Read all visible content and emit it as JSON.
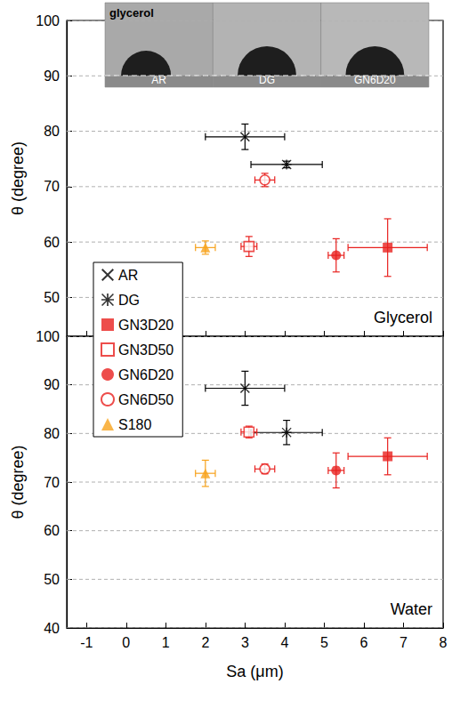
{
  "chart_data": [
    {
      "type": "scatter",
      "title": "Glycerol",
      "y_label": "θ (degree)",
      "xlim": [
        -1.5,
        8
      ],
      "xticks": [
        -1,
        0,
        1,
        2,
        3,
        4,
        5,
        6,
        7,
        8
      ],
      "ylim": [
        43,
        100
      ],
      "yticks": [
        50,
        60,
        70,
        80,
        90,
        100
      ],
      "grid": true,
      "legend": "left",
      "tick_labels": "y",
      "inset": {
        "title": "glycerol",
        "labels": [
          "AR",
          "DG",
          "GN6D20"
        ]
      },
      "series": [
        {
          "name": "AR",
          "color": "#000000",
          "marker": "x",
          "x": [
            3.0
          ],
          "values": [
            79.0
          ],
          "x_error": [
            1.0
          ],
          "y_error": [
            2.3
          ]
        },
        {
          "name": "DG",
          "color": "#000000",
          "marker": "asterisk",
          "x": [
            4.05
          ],
          "values": [
            74.0
          ],
          "x_error": [
            0.9
          ],
          "y_error": [
            0.6
          ]
        },
        {
          "name": "GN3D20",
          "color": "#e8201e",
          "marker": "square",
          "x": [
            6.6
          ],
          "values": [
            59.0
          ],
          "x_error": [
            1.0
          ],
          "y_error": [
            5.2
          ]
        },
        {
          "name": "GN3D50",
          "color": "#e8201e",
          "marker": "square-open",
          "x": [
            3.1
          ],
          "values": [
            59.2
          ],
          "x_error": [
            0.2
          ],
          "y_error": [
            1.8
          ]
        },
        {
          "name": "GN6D20",
          "color": "#e8201e",
          "marker": "circle",
          "x": [
            5.3
          ],
          "values": [
            57.6
          ],
          "x_error": [
            0.2
          ],
          "y_error": [
            3.0
          ]
        },
        {
          "name": "GN6D50",
          "color": "#e8201e",
          "marker": "circle-open",
          "x": [
            3.5
          ],
          "values": [
            71.2
          ],
          "x_error": [
            0.25
          ],
          "y_error": [
            1.2
          ]
        },
        {
          "name": "S180",
          "color": "#f7a21b",
          "marker": "triangle",
          "x": [
            2.0
          ],
          "values": [
            59.0
          ],
          "x_error": [
            0.25
          ],
          "y_error": [
            1.2
          ]
        }
      ]
    },
    {
      "type": "scatter",
      "title": "Water",
      "x_label": "Sa (μm)",
      "y_label": "θ (degree)",
      "xlim": [
        -1.5,
        8
      ],
      "xticks": [
        -1,
        0,
        1,
        2,
        3,
        4,
        5,
        6,
        7,
        8
      ],
      "ylim": [
        40,
        100
      ],
      "yticks": [
        40,
        50,
        60,
        70,
        80,
        90,
        100
      ],
      "grid": true,
      "series": [
        {
          "name": "AR",
          "color": "#000000",
          "marker": "x",
          "x": [
            3.0
          ],
          "values": [
            89.3
          ],
          "x_error": [
            1.0
          ],
          "y_error": [
            3.5
          ]
        },
        {
          "name": "DG",
          "color": "#000000",
          "marker": "asterisk",
          "x": [
            4.05
          ],
          "values": [
            80.2
          ],
          "x_error": [
            0.9
          ],
          "y_error": [
            2.5
          ]
        },
        {
          "name": "GN3D20",
          "color": "#e8201e",
          "marker": "square",
          "x": [
            6.6
          ],
          "values": [
            75.3
          ],
          "x_error": [
            1.0
          ],
          "y_error": [
            3.8
          ]
        },
        {
          "name": "GN3D50",
          "color": "#e8201e",
          "marker": "square-open",
          "x": [
            3.1
          ],
          "values": [
            80.3
          ],
          "x_error": [
            0.2
          ],
          "y_error": [
            1.2
          ]
        },
        {
          "name": "GN6D20",
          "color": "#e8201e",
          "marker": "circle",
          "x": [
            5.3
          ],
          "values": [
            72.4
          ],
          "x_error": [
            0.2
          ],
          "y_error": [
            3.6
          ]
        },
        {
          "name": "GN6D50",
          "color": "#e8201e",
          "marker": "circle-open",
          "x": [
            3.5
          ],
          "values": [
            72.7
          ],
          "x_error": [
            0.25
          ],
          "y_error": [
            1.0
          ]
        },
        {
          "name": "S180",
          "color": "#f7a21b",
          "marker": "triangle",
          "x": [
            2.0
          ],
          "values": [
            71.8
          ],
          "x_error": [
            0.25
          ],
          "y_error": [
            2.7
          ]
        }
      ]
    }
  ]
}
